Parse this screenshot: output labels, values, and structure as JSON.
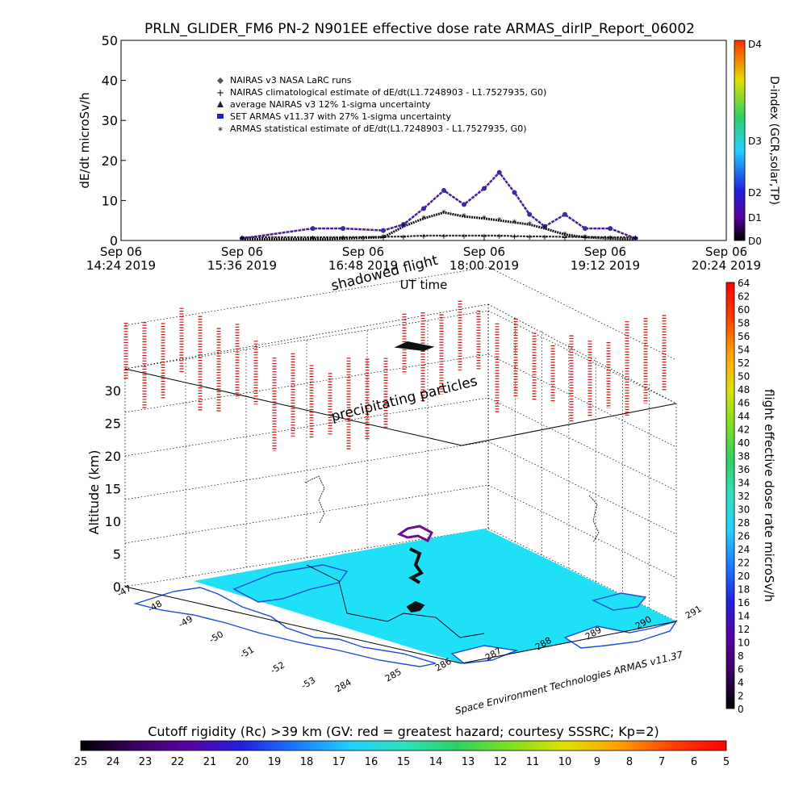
{
  "title": "PRLN_GLIDER_FM6 PN-2 N901EE effective dose rate ARMAS_dirIP_Report_06002",
  "chart_data": [
    {
      "type": "scatter",
      "ylabel": "dE/dt microSv/h",
      "xlabel": "UT time",
      "ylim": [
        0,
        50
      ],
      "yticks": [
        "0",
        "10",
        "20",
        "30",
        "40",
        "50"
      ],
      "x_tick_labels": [
        {
          "line1": "Sep 06",
          "line2": "14:24 2019"
        },
        {
          "line1": "Sep 06",
          "line2": "15:36 2019"
        },
        {
          "line1": "Sep 06",
          "line2": "16:48 2019"
        },
        {
          "line1": "Sep 06",
          "line2": "18:00 2019"
        },
        {
          "line1": "Sep 06",
          "line2": "19:12 2019"
        },
        {
          "line1": "Sep 06",
          "line2": "20:24 2019"
        }
      ],
      "legend": [
        {
          "marker": "diamond",
          "text": "NAIRAS v3 NASA LaRC runs"
        },
        {
          "marker": "plus",
          "text": "NAIRAS climatological estimate of dE/dt(L1.7248903 - L1.7527935, G0)"
        },
        {
          "marker": "triangle",
          "text": "average NAIRAS v3 12% 1-sigma uncertainty"
        },
        {
          "marker": "square-blue",
          "text": "SET ARMAS v11.37 with 27% 1-sigma uncertainty"
        },
        {
          "marker": "star",
          "text": "ARMAS statistical estimate of dE/dt(L1.7248903 - L1.7527935, G0)"
        }
      ],
      "legend_position": "top-center",
      "right_axis_label": "D-index (GCR,solar,TP)",
      "right_axis_ticks": [
        "D0",
        "D1",
        "D2",
        "D3",
        "D4"
      ],
      "x_hours": [
        15.6,
        16.3,
        16.6,
        17.0,
        17.2,
        17.4,
        17.6,
        17.8,
        18.0,
        18.15,
        18.3,
        18.45,
        18.6,
        18.8,
        19.0,
        19.25,
        19.5
      ],
      "series": [
        {
          "name": "SET ARMAS v11.37 with 27% 1-sigma uncertainty",
          "values": [
            0.5,
            3.0,
            3.0,
            2.5,
            4.0,
            8.0,
            12.5,
            9.0,
            13.0,
            17.0,
            12.0,
            6.5,
            3.5,
            6.5,
            3.0,
            3.0,
            0.5
          ]
        },
        {
          "name": "ARMAS statistical estimate of dE/dt(L1.7248903 - L1.7527935, G0)",
          "values": [
            0.3,
            0.3,
            0.5,
            0.8,
            3.5,
            5.5,
            7.0,
            6.0,
            5.5,
            5.0,
            4.5,
            4.0,
            3.0,
            1.5,
            0.8,
            0.5,
            0.3
          ]
        },
        {
          "name": "NAIRAS climatological estimate of dE/dt(L1.7248903 - L1.7527935, G0)",
          "values": [
            0.8,
            0.8,
            0.8,
            0.9,
            1.0,
            1.2,
            1.2,
            1.2,
            1.2,
            1.2,
            1.1,
            1.0,
            1.0,
            0.9,
            0.9,
            0.8,
            0.8
          ]
        }
      ]
    },
    {
      "type": "scatter",
      "zlabel": "Altitude (km)",
      "zticks": [
        "0",
        "5",
        "10",
        "15",
        "20",
        "25",
        "30"
      ],
      "lat_ticks": [
        "-47",
        "-48",
        "-49",
        "-50",
        "-51",
        "-52",
        "-53"
      ],
      "lon_ticks": [
        "284",
        "285",
        "286",
        "287",
        "288",
        "289",
        "290",
        "291"
      ],
      "annotations": [
        "shadowed flight",
        "precipitating particles"
      ],
      "colorbar_label": "flight effective dose rate microSv/h",
      "colorbar_ticks": [
        "0",
        "2",
        "4",
        "6",
        "8",
        "10",
        "12",
        "14",
        "16",
        "18",
        "20",
        "22",
        "24",
        "26",
        "28",
        "30",
        "32",
        "34",
        "36",
        "38",
        "40",
        "42",
        "44",
        "46",
        "48",
        "50",
        "52",
        "54",
        "56",
        "58",
        "60",
        "62",
        "64"
      ]
    }
  ],
  "credit": "Space Environment Technologies ARMAS v11.37",
  "bottom_bar": {
    "label": "Cutoff rigidity (Rc) >39 km (GV: red = greatest hazard; courtesy SSSRC; Kp=2)",
    "ticks": [
      "25",
      "24",
      "23",
      "22",
      "21",
      "20",
      "19",
      "18",
      "17",
      "16",
      "15",
      "14",
      "13",
      "12",
      "11",
      "10",
      "9",
      "8",
      "7",
      "6",
      "5"
    ]
  },
  "colors": {
    "rainbow": [
      "#000000",
      "#3a0060",
      "#5a00a0",
      "#2020e0",
      "#1e78ff",
      "#20d0ff",
      "#30e0c0",
      "#30d060",
      "#80e020",
      "#e0e000",
      "#ffa000",
      "#ff4000",
      "#ff0000"
    ],
    "sea": "#20e0f8",
    "coast": "#1a4ad8",
    "armas": "#2020c8",
    "precip": "#cc1010",
    "flight": "#6a1090"
  }
}
